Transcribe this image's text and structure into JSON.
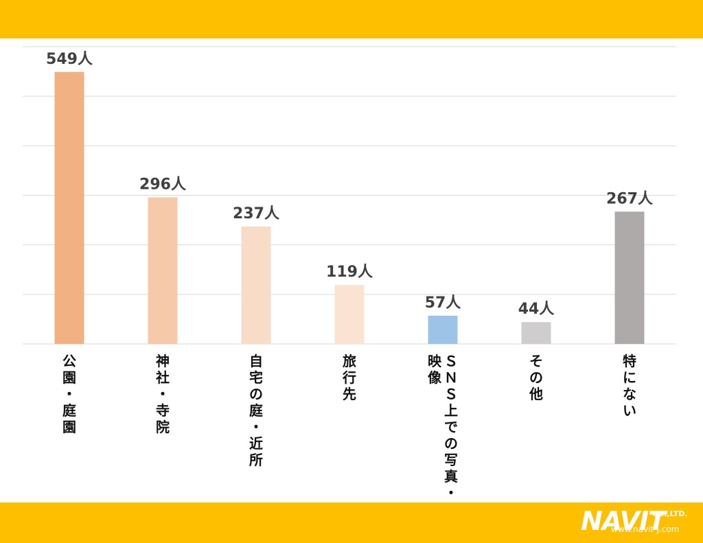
{
  "chart_data": {
    "type": "bar",
    "categories": [
      "公園・庭園",
      "神社・寺院",
      "自宅の庭・近所",
      "旅行先",
      "SNS上での写真・映像",
      "その他",
      "特にない"
    ],
    "category_lines": [
      [
        "公園・庭園"
      ],
      [
        "神社・寺院"
      ],
      [
        "自宅の庭・近所"
      ],
      [
        "旅行先"
      ],
      [
        "ＳＮＳ上での写真・",
        "映像"
      ],
      [
        "その他"
      ],
      [
        "特にない"
      ]
    ],
    "values": [
      549,
      296,
      237,
      119,
      57,
      44,
      267
    ],
    "value_labels": [
      "549人",
      "296人",
      "237人",
      "119人",
      "57人",
      "44人",
      "267人"
    ],
    "colors": [
      "#F2B183",
      "#F5C9A9",
      "#F9DCC7",
      "#FAE3D3",
      "#9DC3E6",
      "#CFCDCD",
      "#AEAAAA"
    ],
    "ylim": [
      0,
      600
    ],
    "grid": true,
    "gridline_values": [
      0,
      100,
      200,
      300,
      400,
      500,
      600
    ],
    "gridline_color": "#D9D9D9"
  },
  "brand": {
    "logo_text": "NAVIT",
    "logo_suffix": "CO.,LTD.",
    "url": "www.navit-j.com",
    "band_color": "#FDBF00"
  }
}
